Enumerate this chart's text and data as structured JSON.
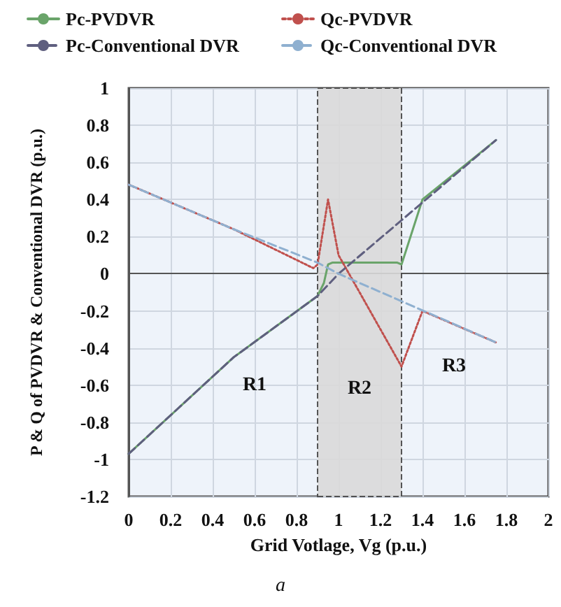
{
  "chart_data": {
    "type": "line",
    "xlabel": "Grid Votlage, Vg (p.u.)",
    "ylabel": "P & Q of PVDVR & Conventional DVR (p.u.)",
    "series": [
      {
        "name": "Pc-PVDVR",
        "color": "#6aa46a",
        "line_style": "solid",
        "x": [
          0,
          0.5,
          0.9,
          0.93,
          0.95,
          0.97,
          1.28,
          1.3,
          1.4,
          1.75
        ],
        "values": [
          -0.97,
          -0.45,
          -0.12,
          -0.05,
          0.05,
          0.06,
          0.06,
          0.05,
          0.4,
          0.72
        ]
      },
      {
        "name": "Qc-PVDVR",
        "color": "#c0504d",
        "line_style": "dotted",
        "x": [
          0,
          0.5,
          0.88,
          0.9,
          0.95,
          1.0,
          1.3,
          1.4,
          1.75
        ],
        "values": [
          0.48,
          0.24,
          0.03,
          0.05,
          0.4,
          0.1,
          -0.5,
          -0.2,
          -0.37
        ]
      },
      {
        "name": "Pc-Conventional DVR",
        "color": "#5f5f7f",
        "line_style": "dashed",
        "x": [
          0,
          0.5,
          0.9,
          1.0,
          1.75
        ],
        "values": [
          -0.97,
          -0.45,
          -0.12,
          0.0,
          0.72
        ]
      },
      {
        "name": "Qc-Conventional DVR",
        "color": "#8fb0d0",
        "line_style": "dashed",
        "x": [
          0,
          0.5,
          0.9,
          1.0,
          1.75
        ],
        "values": [
          0.48,
          0.24,
          0.06,
          0.0,
          -0.37
        ]
      }
    ],
    "xlim": [
      0,
      2
    ],
    "xticks": [
      0,
      0.2,
      0.4,
      0.6,
      0.8,
      1,
      1.2,
      1.4,
      1.6,
      1.8,
      2
    ],
    "ylim": [
      -1.2,
      1
    ],
    "yticks": [
      -1.2,
      -1,
      -0.8,
      -0.6,
      -0.4,
      -0.2,
      0,
      0.2,
      0.4,
      0.6,
      0.8,
      1
    ],
    "bands": [
      {
        "axis": "x",
        "from": 0.9,
        "to": 1.3,
        "color": "#d9d9d9"
      }
    ],
    "annotations": [
      "R1",
      "R2",
      "R3",
      "a"
    ],
    "grid": true,
    "legend": "top",
    "marker": "none"
  }
}
